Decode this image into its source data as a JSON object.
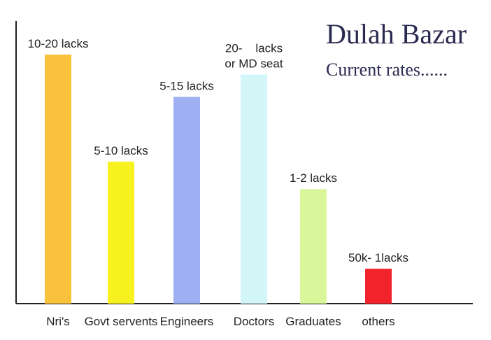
{
  "chart_data": {
    "type": "bar",
    "title": "Dulah Bazar",
    "subtitle": "Current rates......",
    "xlabel": "",
    "ylabel": "",
    "grid": false,
    "categories": [
      "Nri's",
      "Govt servents",
      "Engineers",
      "Doctors",
      "Graduates",
      "others"
    ],
    "series": [
      {
        "values": [
          100,
          57,
          83,
          92,
          46,
          14
        ],
        "labels": [
          [
            "10-20 lacks"
          ],
          [
            "5-10 lacks"
          ],
          [
            "5-15 lacks"
          ],
          [
            "20-    lacks",
            "or MD seat"
          ],
          [
            "1-2 lacks"
          ],
          [
            "50k- 1lacks"
          ]
        ],
        "colors": [
          "#f9c23c",
          "#f7f21f",
          "#9fb0f2",
          "#d3f7f9",
          "#d9f79a",
          "#f2232b"
        ]
      }
    ],
    "ylim": [
      0,
      100
    ]
  }
}
